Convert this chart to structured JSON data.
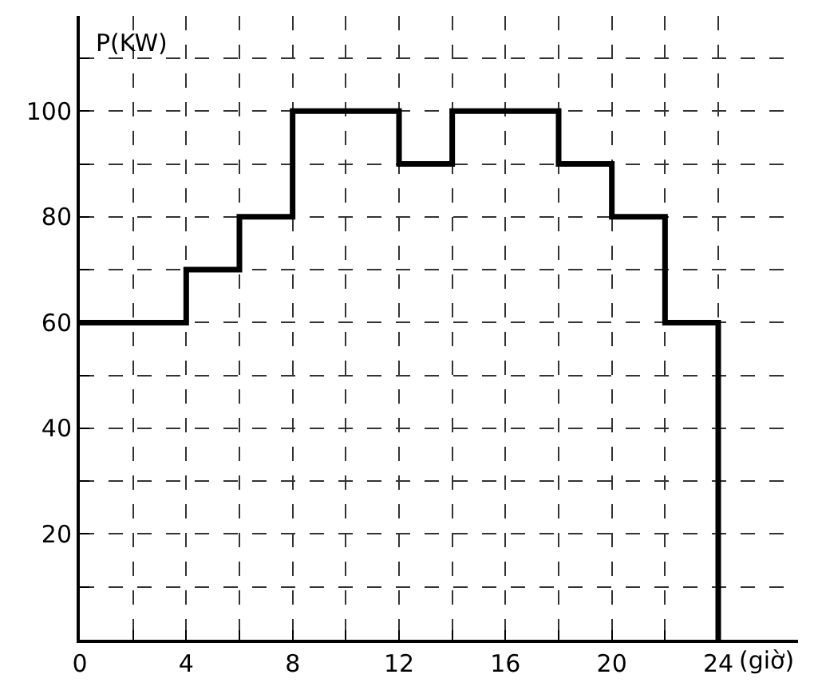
{
  "chart_data": {
    "type": "step",
    "xlabel": "(giờ)",
    "ylabel": "P(KW)",
    "x": [
      0,
      4,
      6,
      8,
      12,
      14,
      18,
      20,
      22,
      24
    ],
    "series": [
      {
        "color": "#000000",
        "values": [
          60,
          70,
          80,
          100,
          90,
          100,
          90,
          80,
          60,
          0
        ]
      }
    ],
    "xlim": [
      0,
      27
    ],
    "ylim": [
      0,
      118
    ],
    "xticks": [
      0,
      {
        "value": 2,
        "label": null
      },
      4,
      {
        "value": 6,
        "label": null
      },
      8,
      {
        "value": 10,
        "label": null
      },
      12,
      {
        "value": 14,
        "label": null
      },
      16,
      {
        "value": 18,
        "label": null
      },
      20,
      {
        "value": 22,
        "label": null
      },
      24
    ],
    "yticks": [
      {
        "value": 10,
        "label": null
      },
      20,
      {
        "value": 30,
        "label": null
      },
      40,
      {
        "value": 50,
        "label": null
      },
      60,
      {
        "value": 70,
        "label": null
      },
      80,
      {
        "value": 90,
        "label": null
      },
      100,
      {
        "value": 110,
        "label": null
      }
    ],
    "grid": true,
    "line_style": "solid",
    "marker": "none"
  }
}
